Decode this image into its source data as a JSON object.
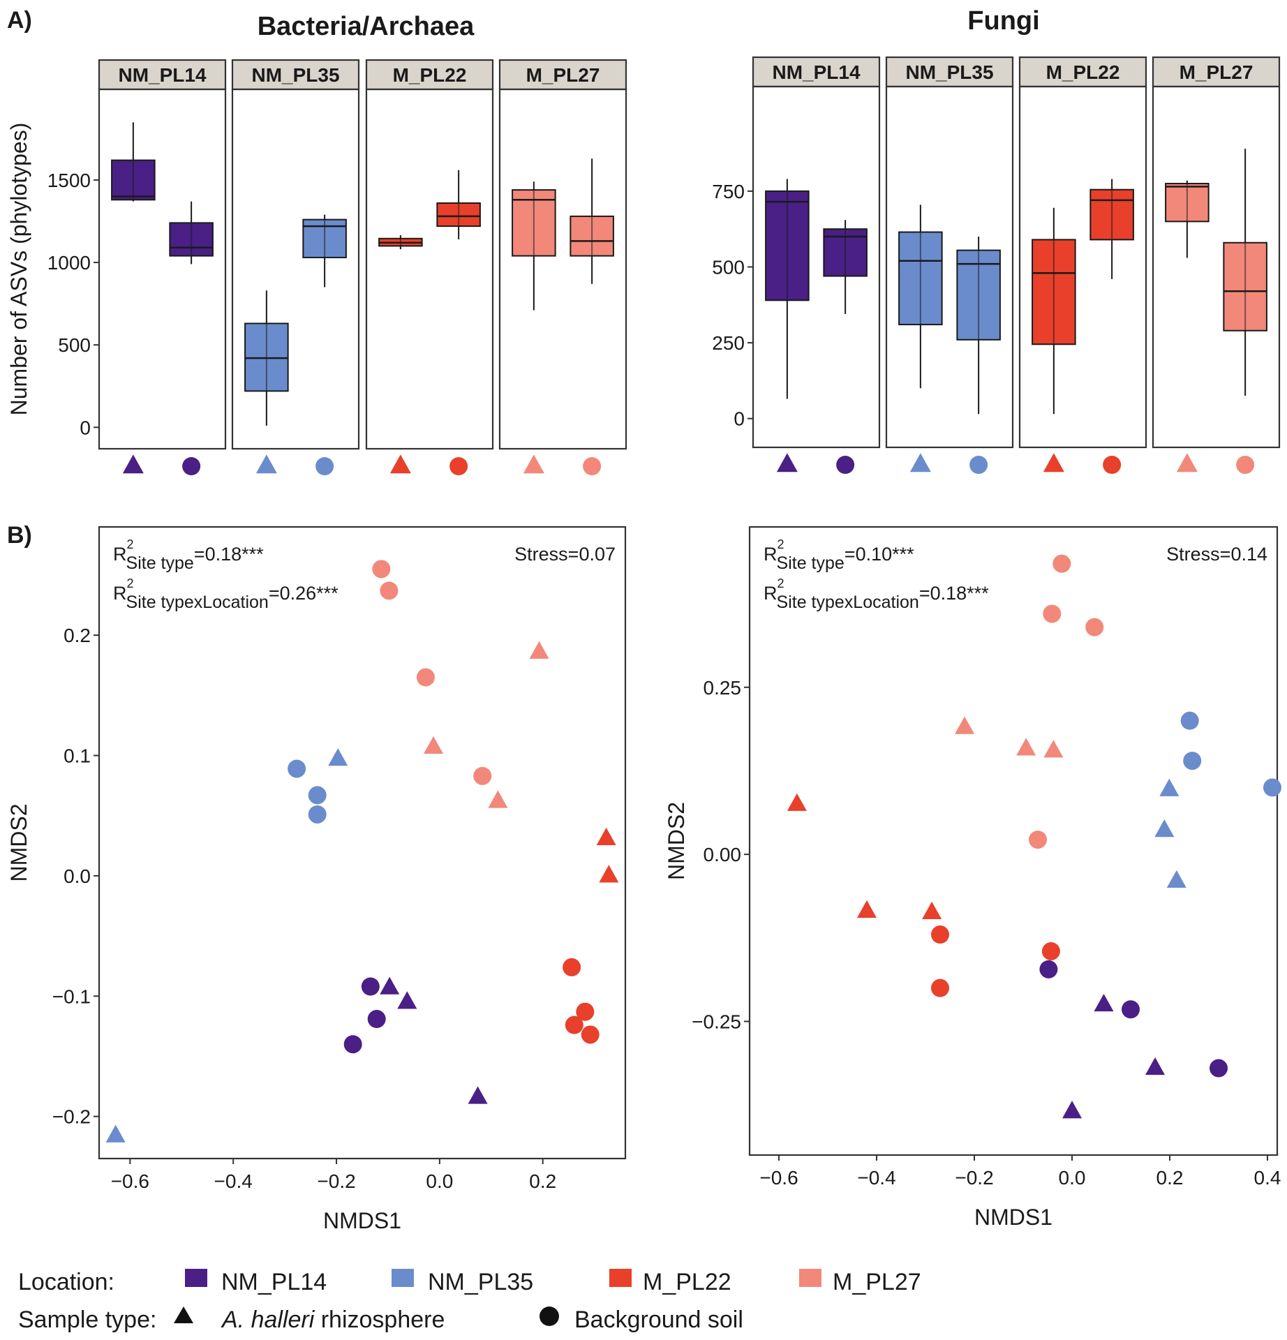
{
  "figure": {
    "panel_a_label": "A)",
    "panel_b_label": "B)"
  },
  "colors": {
    "NM_PL14": "#4a1f86",
    "NM_PL35": "#6a8ccc",
    "M_PL22": "#e8402a",
    "M_PL27": "#f2887a"
  },
  "chart_data": [
    {
      "id": "box_bacteria",
      "type": "box",
      "title": "Bacteria/Archaea",
      "ylabel": "Number of ASVs (phylotypes)",
      "xlabel": "",
      "ylim": [
        -130,
        2050
      ],
      "yticks": [
        0,
        500,
        1000,
        1500
      ],
      "facets": [
        "NM_PL14",
        "NM_PL35",
        "M_PL22",
        "M_PL27"
      ],
      "sample_types": [
        "triangle",
        "circle"
      ],
      "boxes": [
        {
          "location": "NM_PL14",
          "sample_type": "triangle",
          "min": 1370,
          "q1": 1380,
          "median": 1400,
          "q3": 1620,
          "max": 1850
        },
        {
          "location": "NM_PL14",
          "sample_type": "circle",
          "min": 990,
          "q1": 1040,
          "median": 1090,
          "q3": 1240,
          "max": 1370
        },
        {
          "location": "NM_PL35",
          "sample_type": "triangle",
          "min": 10,
          "q1": 220,
          "median": 420,
          "q3": 630,
          "max": 830
        },
        {
          "location": "NM_PL35",
          "sample_type": "circle",
          "min": 850,
          "q1": 1030,
          "median": 1220,
          "q3": 1260,
          "max": 1290
        },
        {
          "location": "M_PL22",
          "sample_type": "triangle",
          "min": 1080,
          "q1": 1100,
          "median": 1120,
          "q3": 1145,
          "max": 1165
        },
        {
          "location": "M_PL22",
          "sample_type": "circle",
          "min": 1140,
          "q1": 1220,
          "median": 1280,
          "q3": 1360,
          "max": 1560
        },
        {
          "location": "M_PL27",
          "sample_type": "triangle",
          "min": 710,
          "q1": 1040,
          "median": 1380,
          "q3": 1440,
          "max": 1490
        },
        {
          "location": "M_PL27",
          "sample_type": "circle",
          "min": 870,
          "q1": 1040,
          "median": 1130,
          "q3": 1280,
          "max": 1630
        }
      ]
    },
    {
      "id": "box_fungi",
      "type": "box",
      "title": "Fungi",
      "ylabel": "",
      "xlabel": "",
      "ylim": [
        -95,
        1095
      ],
      "yticks": [
        0,
        250,
        500,
        750
      ],
      "facets": [
        "NM_PL14",
        "NM_PL35",
        "M_PL22",
        "M_PL27"
      ],
      "sample_types": [
        "triangle",
        "circle"
      ],
      "boxes": [
        {
          "location": "NM_PL14",
          "sample_type": "triangle",
          "min": 65,
          "q1": 390,
          "median": 715,
          "q3": 750,
          "max": 790
        },
        {
          "location": "NM_PL14",
          "sample_type": "circle",
          "min": 345,
          "q1": 470,
          "median": 600,
          "q3": 625,
          "max": 655
        },
        {
          "location": "NM_PL35",
          "sample_type": "triangle",
          "min": 100,
          "q1": 310,
          "median": 520,
          "q3": 615,
          "max": 705
        },
        {
          "location": "NM_PL35",
          "sample_type": "circle",
          "min": 15,
          "q1": 260,
          "median": 510,
          "q3": 555,
          "max": 600
        },
        {
          "location": "M_PL22",
          "sample_type": "triangle",
          "min": 15,
          "q1": 245,
          "median": 480,
          "q3": 590,
          "max": 695
        },
        {
          "location": "M_PL22",
          "sample_type": "circle",
          "min": 460,
          "q1": 590,
          "median": 720,
          "q3": 755,
          "max": 790
        },
        {
          "location": "M_PL27",
          "sample_type": "triangle",
          "min": 530,
          "q1": 650,
          "median": 765,
          "q3": 775,
          "max": 785
        },
        {
          "location": "M_PL27",
          "sample_type": "circle",
          "min": 75,
          "q1": 290,
          "median": 420,
          "q3": 580,
          "max": 890
        }
      ]
    },
    {
      "id": "nmds_bacteria",
      "type": "scatter",
      "xlabel": "NMDS1",
      "ylabel": "NMDS2",
      "xlim": [
        -0.66,
        0.36
      ],
      "ylim": [
        -0.235,
        0.29
      ],
      "xticks": [
        -0.6,
        -0.4,
        -0.2,
        0.0,
        0.2
      ],
      "yticks": [
        -0.2,
        -0.1,
        0.0,
        0.1,
        0.2
      ],
      "xtick_labels": [
        "−0.6",
        "−0.4",
        "−0.2",
        "0.0",
        "0.2"
      ],
      "ytick_labels": [
        "−0.2",
        "−0.1",
        "0.0",
        "0.1",
        "0.2"
      ],
      "stress": "Stress=0.07",
      "r2_site_type": {
        "base": "R",
        "sup": "2",
        "sub": "Site type",
        "value": "=0.18***"
      },
      "r2_interaction": {
        "base": "R",
        "sup": "2",
        "sub": "Site typexLocation",
        "value": "=0.26***"
      },
      "points": [
        {
          "x": -0.113,
          "y": 0.255,
          "location": "M_PL27",
          "shape": "circle"
        },
        {
          "x": -0.098,
          "y": 0.237,
          "location": "M_PL27",
          "shape": "circle"
        },
        {
          "x": -0.027,
          "y": 0.165,
          "location": "M_PL27",
          "shape": "circle"
        },
        {
          "x": 0.083,
          "y": 0.083,
          "location": "M_PL27",
          "shape": "circle"
        },
        {
          "x": 0.193,
          "y": 0.186,
          "location": "M_PL27",
          "shape": "triangle"
        },
        {
          "x": -0.012,
          "y": 0.107,
          "location": "M_PL27",
          "shape": "triangle"
        },
        {
          "x": 0.113,
          "y": 0.062,
          "location": "M_PL27",
          "shape": "triangle"
        },
        {
          "x": -0.277,
          "y": 0.089,
          "location": "NM_PL35",
          "shape": "circle"
        },
        {
          "x": -0.237,
          "y": 0.067,
          "location": "NM_PL35",
          "shape": "circle"
        },
        {
          "x": -0.237,
          "y": 0.051,
          "location": "NM_PL35",
          "shape": "circle"
        },
        {
          "x": -0.197,
          "y": 0.097,
          "location": "NM_PL35",
          "shape": "triangle"
        },
        {
          "x": -0.628,
          "y": -0.216,
          "location": "NM_PL35",
          "shape": "triangle"
        },
        {
          "x": 0.323,
          "y": 0.031,
          "location": "M_PL22",
          "shape": "triangle"
        },
        {
          "x": 0.328,
          "y": 0.0,
          "location": "M_PL22",
          "shape": "triangle"
        },
        {
          "x": 0.256,
          "y": -0.076,
          "location": "M_PL22",
          "shape": "circle"
        },
        {
          "x": 0.261,
          "y": -0.124,
          "location": "M_PL22",
          "shape": "circle"
        },
        {
          "x": 0.282,
          "y": -0.113,
          "location": "M_PL22",
          "shape": "circle"
        },
        {
          "x": 0.292,
          "y": -0.132,
          "location": "M_PL22",
          "shape": "circle"
        },
        {
          "x": -0.134,
          "y": -0.092,
          "location": "NM_PL14",
          "shape": "circle"
        },
        {
          "x": -0.122,
          "y": -0.119,
          "location": "NM_PL14",
          "shape": "circle"
        },
        {
          "x": -0.168,
          "y": -0.14,
          "location": "NM_PL14",
          "shape": "circle"
        },
        {
          "x": -0.097,
          "y": -0.093,
          "location": "NM_PL14",
          "shape": "triangle"
        },
        {
          "x": -0.063,
          "y": -0.105,
          "location": "NM_PL14",
          "shape": "triangle"
        },
        {
          "x": 0.074,
          "y": -0.184,
          "location": "NM_PL14",
          "shape": "triangle"
        }
      ]
    },
    {
      "id": "nmds_fungi",
      "type": "scatter",
      "xlabel": "NMDS1",
      "ylabel": "NMDS2",
      "xlim": [
        -0.66,
        0.42
      ],
      "ylim": [
        -0.45,
        0.49
      ],
      "xticks": [
        -0.6,
        -0.4,
        -0.2,
        0.0,
        0.2,
        0.4
      ],
      "yticks": [
        -0.25,
        0.0,
        0.25
      ],
      "xtick_labels": [
        "−0.6",
        "−0.4",
        "−0.2",
        "0.0",
        "0.2",
        "0.4"
      ],
      "ytick_labels": [
        "−0.25",
        "0.00",
        "0.25"
      ],
      "stress": "Stress=0.14",
      "r2_site_type": {
        "base": "R",
        "sup": "2",
        "sub": "Site type",
        "value": "=0.10***"
      },
      "r2_interaction": {
        "base": "R",
        "sup": "2",
        "sub": "Site typexLocation",
        "value": "=0.18***"
      },
      "points": [
        {
          "x": -0.021,
          "y": 0.435,
          "location": "M_PL27",
          "shape": "circle"
        },
        {
          "x": -0.041,
          "y": 0.36,
          "location": "M_PL27",
          "shape": "circle"
        },
        {
          "x": 0.046,
          "y": 0.34,
          "location": "M_PL27",
          "shape": "circle"
        },
        {
          "x": -0.07,
          "y": 0.022,
          "location": "M_PL27",
          "shape": "circle"
        },
        {
          "x": -0.22,
          "y": 0.19,
          "location": "M_PL27",
          "shape": "triangle"
        },
        {
          "x": -0.094,
          "y": 0.158,
          "location": "M_PL27",
          "shape": "triangle"
        },
        {
          "x": -0.038,
          "y": 0.155,
          "location": "M_PL27",
          "shape": "triangle"
        },
        {
          "x": 0.241,
          "y": 0.2,
          "location": "NM_PL35",
          "shape": "circle"
        },
        {
          "x": 0.246,
          "y": 0.14,
          "location": "NM_PL35",
          "shape": "circle"
        },
        {
          "x": 0.41,
          "y": 0.1,
          "location": "NM_PL35",
          "shape": "circle"
        },
        {
          "x": 0.199,
          "y": 0.097,
          "location": "NM_PL35",
          "shape": "triangle"
        },
        {
          "x": 0.189,
          "y": 0.036,
          "location": "NM_PL35",
          "shape": "triangle"
        },
        {
          "x": 0.214,
          "y": -0.04,
          "location": "NM_PL35",
          "shape": "triangle"
        },
        {
          "x": -0.563,
          "y": 0.075,
          "location": "M_PL22",
          "shape": "triangle"
        },
        {
          "x": -0.42,
          "y": -0.085,
          "location": "M_PL22",
          "shape": "triangle"
        },
        {
          "x": -0.287,
          "y": -0.087,
          "location": "M_PL22",
          "shape": "triangle"
        },
        {
          "x": -0.27,
          "y": -0.12,
          "location": "M_PL22",
          "shape": "circle"
        },
        {
          "x": -0.27,
          "y": -0.2,
          "location": "M_PL22",
          "shape": "circle"
        },
        {
          "x": -0.043,
          "y": -0.145,
          "location": "M_PL22",
          "shape": "circle"
        },
        {
          "x": -0.048,
          "y": -0.172,
          "location": "NM_PL14",
          "shape": "circle"
        },
        {
          "x": 0.12,
          "y": -0.232,
          "location": "NM_PL14",
          "shape": "circle"
        },
        {
          "x": 0.3,
          "y": -0.32,
          "location": "NM_PL14",
          "shape": "circle"
        },
        {
          "x": 0.065,
          "y": -0.225,
          "location": "NM_PL14",
          "shape": "triangle"
        },
        {
          "x": 0.17,
          "y": -0.32,
          "location": "NM_PL14",
          "shape": "triangle"
        },
        {
          "x": 0.0,
          "y": -0.385,
          "location": "NM_PL14",
          "shape": "triangle"
        }
      ]
    }
  ],
  "legend": {
    "location_title": "Location:",
    "locations": [
      "NM_PL14",
      "NM_PL35",
      "M_PL22",
      "M_PL27"
    ],
    "sample_type_title": "Sample type:",
    "rhizosphere_italic": "A. halleri",
    "rhizosphere_rest": " rhizosphere",
    "background": "Background soil"
  }
}
